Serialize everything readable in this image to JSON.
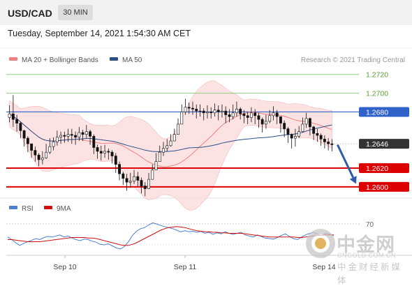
{
  "header": {
    "pair": "USD/CAD",
    "timeframe": "30 MIN"
  },
  "timestamp": "Tuesday, September 14, 2021 1:54:30 AM CET",
  "legend": {
    "ma20_label": "MA 20 + Bollinger Bands",
    "ma20_color": "#f08080",
    "ma50_label": "MA 50",
    "ma50_color": "#2c4f8a",
    "credit": "Research © 2021 Trading Central"
  },
  "rsi_legend": {
    "rsi_label": "RSI",
    "rsi_color": "#4a7fd4",
    "ma_label": "9MA",
    "ma_color": "#d01010"
  },
  "watermark": {
    "brand": "中金网",
    "url": "CNGOLD.COM.CN",
    "tagline": "中金财经新媒体"
  },
  "chart_data": [
    {
      "type": "candlestick",
      "ylim": [
        1.2588,
        1.2728
      ],
      "horizontal_levels": [
        {
          "value": 1.272,
          "label": "1.2720",
          "style": "resistance",
          "color": "#8fcf7f"
        },
        {
          "value": 1.27,
          "label": "1.2700",
          "style": "resistance",
          "color": "#8fcf7f"
        },
        {
          "value": 1.268,
          "label": "1.2680",
          "style": "pivot",
          "color": "#2f63c9"
        },
        {
          "value": 1.2646,
          "label": "1.2646",
          "style": "current",
          "color": "#333333"
        },
        {
          "value": 1.262,
          "label": "1.2620",
          "style": "support",
          "color": "#dd0000"
        },
        {
          "value": 1.26,
          "label": "1.2600",
          "style": "support",
          "color": "#dd0000"
        }
      ],
      "forecast_arrow": {
        "from": 1.2645,
        "to": 1.2601,
        "color": "#2f5ca8"
      },
      "close": [
        1.2678,
        1.2672,
        1.2668,
        1.266,
        1.2652,
        1.2646,
        1.2639,
        1.2634,
        1.2629,
        1.2631,
        1.2637,
        1.2643,
        1.2648,
        1.2653,
        1.2655,
        1.2654,
        1.2656,
        1.2655,
        1.2653,
        1.2658,
        1.2656,
        1.2659,
        1.2654,
        1.2642,
        1.2638,
        1.2636,
        1.2638,
        1.2637,
        1.2633,
        1.2624,
        1.2614,
        1.2609,
        1.2605,
        1.2606,
        1.2611,
        1.2607,
        1.2601,
        1.2598,
        1.2608,
        1.2618,
        1.2627,
        1.2637,
        1.2641,
        1.2644,
        1.2649,
        1.2656,
        1.2667,
        1.268,
        1.2685,
        1.2684,
        1.2683,
        1.2681,
        1.2681,
        1.2679,
        1.268,
        1.2679,
        1.2682,
        1.268,
        1.2681,
        1.2677,
        1.2675,
        1.2679,
        1.2683,
        1.2678,
        1.2676,
        1.2674,
        1.2679,
        1.2676,
        1.2672,
        1.2667,
        1.267,
        1.2676,
        1.2679,
        1.2675,
        1.2668,
        1.2662,
        1.2656,
        1.2652,
        1.2654,
        1.2659,
        1.2667,
        1.2673,
        1.2664,
        1.2657,
        1.2655,
        1.2651,
        1.2648,
        1.2646,
        1.2645
      ],
      "high": [
        1.2687,
        1.2698,
        1.2677,
        1.2669,
        1.2661,
        1.2654,
        1.2646,
        1.2643,
        1.2636,
        1.2638,
        1.2646,
        1.2652,
        1.2653,
        1.266,
        1.2659,
        1.2659,
        1.2662,
        1.2662,
        1.2659,
        1.2664,
        1.2661,
        1.2666,
        1.2661,
        1.2656,
        1.2645,
        1.2644,
        1.2645,
        1.2641,
        1.2639,
        1.2636,
        1.2627,
        1.2616,
        1.2614,
        1.2615,
        1.2618,
        1.2616,
        1.261,
        1.2605,
        1.2615,
        1.2624,
        1.2636,
        1.2644,
        1.2648,
        1.2651,
        1.2656,
        1.2662,
        1.2673,
        1.2688,
        1.2694,
        1.269,
        1.2691,
        1.2688,
        1.2688,
        1.2684,
        1.2687,
        1.2685,
        1.2689,
        1.2687,
        1.2688,
        1.2686,
        1.2683,
        1.2688,
        1.2691,
        1.2685,
        1.2682,
        1.268,
        1.2685,
        1.2683,
        1.2679,
        1.2674,
        1.2677,
        1.2682,
        1.2686,
        1.2682,
        1.2675,
        1.2671,
        1.2664,
        1.2657,
        1.2662,
        1.2665,
        1.2674,
        1.2679,
        1.2674,
        1.2665,
        1.2662,
        1.2657,
        1.2655,
        1.2652,
        1.2651
      ],
      "low": [
        1.2669,
        1.2664,
        1.2659,
        1.2652,
        1.2643,
        1.2637,
        1.2631,
        1.2627,
        1.2622,
        1.2624,
        1.263,
        1.2635,
        1.2639,
        1.2644,
        1.2646,
        1.2647,
        1.2648,
        1.2646,
        1.2645,
        1.2649,
        1.2649,
        1.2652,
        1.2645,
        1.2635,
        1.263,
        1.2628,
        1.2631,
        1.2629,
        1.2625,
        1.2615,
        1.2607,
        1.2602,
        1.2596,
        1.2599,
        1.2603,
        1.26,
        1.2593,
        1.259,
        1.2598,
        1.2609,
        1.2619,
        1.263,
        1.2633,
        1.2638,
        1.2643,
        1.2649,
        1.2657,
        1.2669,
        1.2677,
        1.2678,
        1.2677,
        1.2673,
        1.2675,
        1.2671,
        1.2673,
        1.2673,
        1.2675,
        1.2671,
        1.2674,
        1.2668,
        1.2669,
        1.2672,
        1.2675,
        1.2672,
        1.2668,
        1.2667,
        1.2669,
        1.2667,
        1.2663,
        1.2658,
        1.2662,
        1.2668,
        1.2671,
        1.2667,
        1.2658,
        1.2653,
        1.2647,
        1.2641,
        1.2643,
        1.2652,
        1.2658,
        1.2663,
        1.2655,
        1.265,
        1.2648,
        1.2644,
        1.2641,
        1.2639,
        1.2638
      ]
    },
    {
      "type": "line",
      "title": "RSI",
      "ylim": [
        10,
        90
      ],
      "yticks": [
        {
          "value": 70,
          "label": "70"
        }
      ],
      "xticks": [
        "Sep 10",
        "Sep 11",
        "Sep 14"
      ],
      "series": [
        {
          "name": "RSI",
          "color": "#4a7fd4",
          "values": [
            45,
            40,
            34,
            29,
            33,
            36,
            39,
            42,
            40,
            44,
            46,
            45,
            47,
            49,
            45,
            47,
            43,
            40,
            38,
            41,
            40,
            37,
            35,
            31,
            30,
            32,
            28,
            24,
            22,
            27,
            36,
            48,
            56,
            61,
            63,
            68,
            72,
            70,
            67,
            65,
            63,
            61,
            58,
            55,
            57,
            55,
            56,
            54,
            56,
            52,
            54,
            50,
            53,
            51,
            55,
            52,
            50,
            52,
            54,
            49,
            47,
            45,
            49,
            46,
            43,
            42,
            41,
            44,
            48,
            51,
            46,
            42,
            40,
            45,
            49,
            52,
            54,
            50,
            48,
            52,
            50,
            48
          ]
        },
        {
          "name": "9MA",
          "color": "#d01010",
          "values": [
            40,
            40,
            39,
            38,
            37,
            36,
            36,
            36,
            36,
            37,
            38,
            39,
            40,
            41,
            42,
            43,
            44,
            44,
            44,
            44,
            43,
            43,
            42,
            40,
            38,
            36,
            34,
            32,
            30,
            29,
            29,
            31,
            34,
            38,
            42,
            46,
            50,
            54,
            58,
            61,
            63,
            64,
            65,
            64,
            63,
            61,
            59,
            57,
            56,
            55,
            55,
            54,
            54,
            53,
            53,
            52,
            52,
            52,
            52,
            51,
            50,
            49,
            48,
            47,
            46,
            45,
            45,
            45,
            45,
            45,
            45,
            45,
            44,
            44,
            45,
            46,
            47,
            48,
            48,
            49,
            49,
            49
          ]
        }
      ]
    }
  ]
}
